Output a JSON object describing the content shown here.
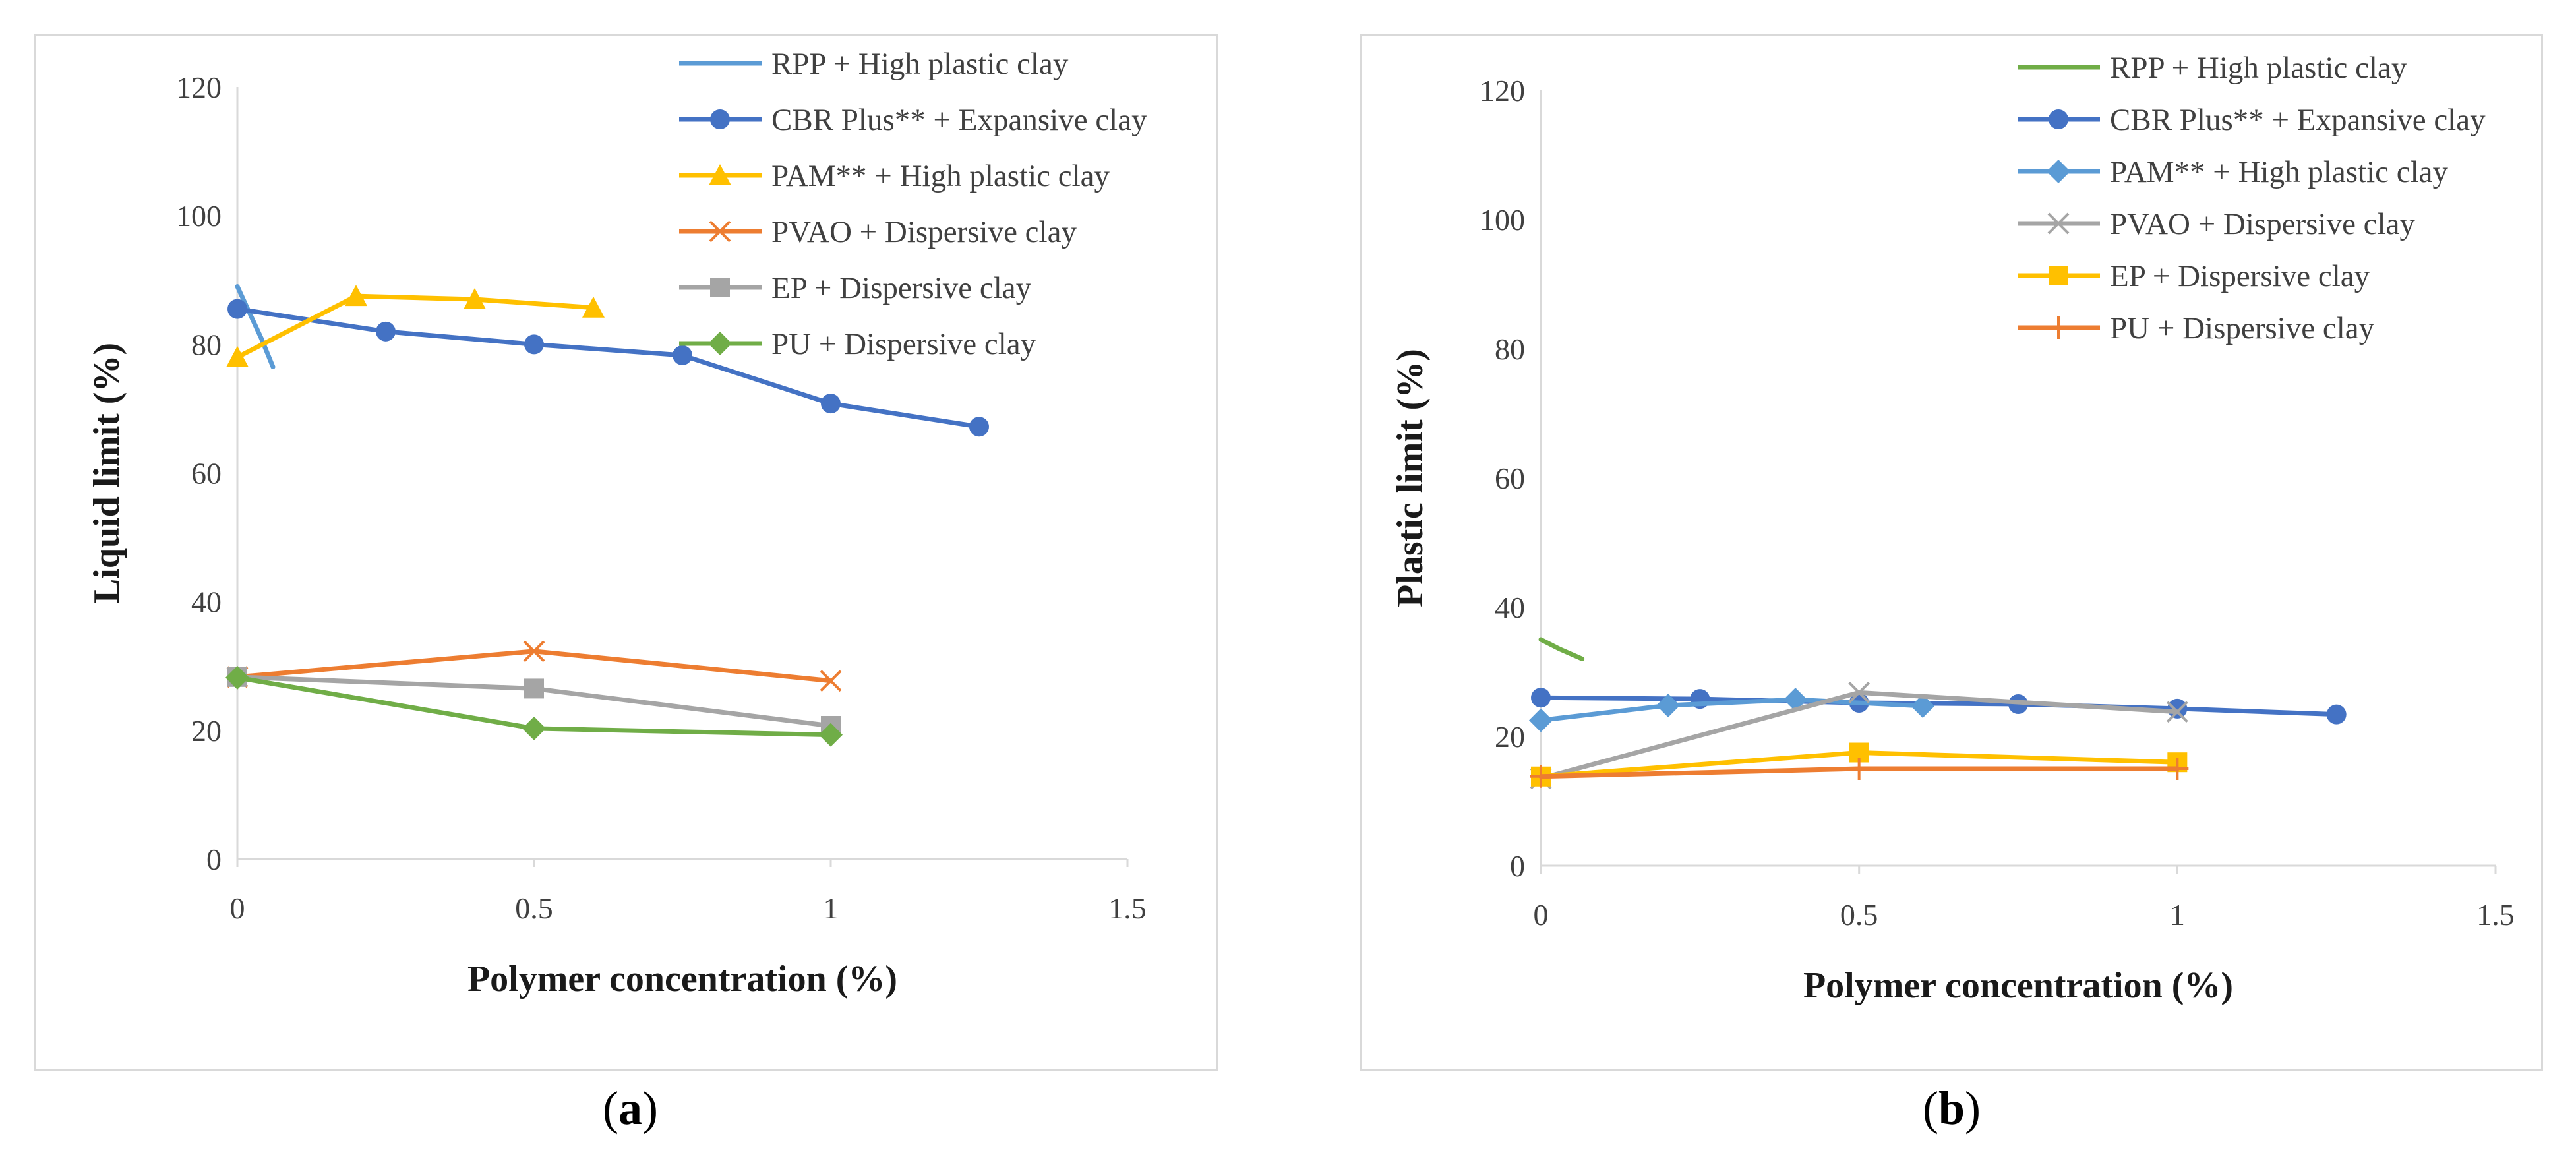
{
  "chart_data": [
    {
      "type": "line",
      "panel": "a",
      "xlabel": "Polymer concentration (%)",
      "ylabel": "Liquid limit (%)",
      "xlim": [
        0,
        1.5
      ],
      "ylim": [
        0,
        120
      ],
      "xticks": [
        "0",
        "0.5",
        "1",
        "1.5"
      ],
      "yticks": [
        "0",
        "20",
        "40",
        "60",
        "80",
        "100",
        "120"
      ],
      "grid": false,
      "legend_position": "top-right",
      "series": [
        {
          "name": "RPP + High plastic clay",
          "color": "#5b9bd5",
          "marker": "none",
          "x": [
            0,
            0.02,
            0.04,
            0.06
          ],
          "y": [
            89,
            85,
            81,
            76.5
          ]
        },
        {
          "name": "CBR Plus** + Expansive clay",
          "color": "#4472c4",
          "marker": "circle",
          "x": [
            0,
            0.25,
            0.5,
            0.75,
            1.0,
            1.25
          ],
          "y": [
            85.5,
            82,
            80,
            78.3,
            70.8,
            67.2
          ]
        },
        {
          "name": "PAM** + High plastic clay",
          "color": "#ffc000",
          "marker": "triangle",
          "x": [
            0,
            0.2,
            0.4,
            0.6
          ],
          "y": [
            78,
            87.5,
            87,
            85.7
          ]
        },
        {
          "name": "PVAO + Dispersive clay",
          "color": "#ed7d31",
          "marker": "x",
          "x": [
            0,
            0.5,
            1.0
          ],
          "y": [
            28.3,
            32.3,
            27.7
          ]
        },
        {
          "name": "EP + Dispersive clay",
          "color": "#a5a5a5",
          "marker": "square",
          "x": [
            0,
            0.5,
            1.0
          ],
          "y": [
            28.3,
            26.5,
            20.7
          ]
        },
        {
          "name": "PU + Dispersive clay",
          "color": "#70ad47",
          "marker": "diamond",
          "x": [
            0,
            0.5,
            1.0
          ],
          "y": [
            28.2,
            20.3,
            19.3
          ]
        }
      ]
    },
    {
      "type": "line",
      "panel": "b",
      "xlabel": "Polymer concentration (%)",
      "ylabel": "Plastic limit (%)",
      "xlim": [
        0,
        1.5
      ],
      "ylim": [
        0,
        120
      ],
      "xticks": [
        "0",
        "0.5",
        "1",
        "1.5"
      ],
      "yticks": [
        "0",
        "20",
        "40",
        "60",
        "80",
        "100",
        "120"
      ],
      "grid": false,
      "legend_position": "top-right",
      "series": [
        {
          "name": "RPP + High plastic clay",
          "color": "#70ad47",
          "marker": "none",
          "x": [
            0,
            0.03,
            0.065
          ],
          "y": [
            35,
            33.5,
            32
          ]
        },
        {
          "name": "CBR Plus** + Expansive clay",
          "color": "#4472c4",
          "marker": "circle",
          "x": [
            0,
            0.25,
            0.5,
            0.75,
            1.0,
            1.25
          ],
          "y": [
            26,
            25.8,
            25.2,
            25,
            24.3,
            23.4
          ]
        },
        {
          "name": "PAM** + High plastic clay",
          "color": "#5b9bd5",
          "marker": "diamond",
          "x": [
            0,
            0.2,
            0.4,
            0.6
          ],
          "y": [
            22.5,
            24.8,
            25.7,
            24.7
          ]
        },
        {
          "name": "PVAO + Dispersive clay",
          "color": "#a5a5a5",
          "marker": "x",
          "x": [
            0,
            0.5,
            1.0
          ],
          "y": [
            13.5,
            26.8,
            23.8
          ]
        },
        {
          "name": "EP + Dispersive clay",
          "color": "#ffc000",
          "marker": "square",
          "x": [
            0,
            0.5,
            1.0
          ],
          "y": [
            13.8,
            17.5,
            16
          ]
        },
        {
          "name": "PU + Dispersive clay",
          "color": "#ed7d31",
          "marker": "plus",
          "x": [
            0,
            0.5,
            1.0
          ],
          "y": [
            13.8,
            15,
            15
          ]
        }
      ]
    }
  ],
  "captions": {
    "a": "a",
    "b": "b"
  }
}
